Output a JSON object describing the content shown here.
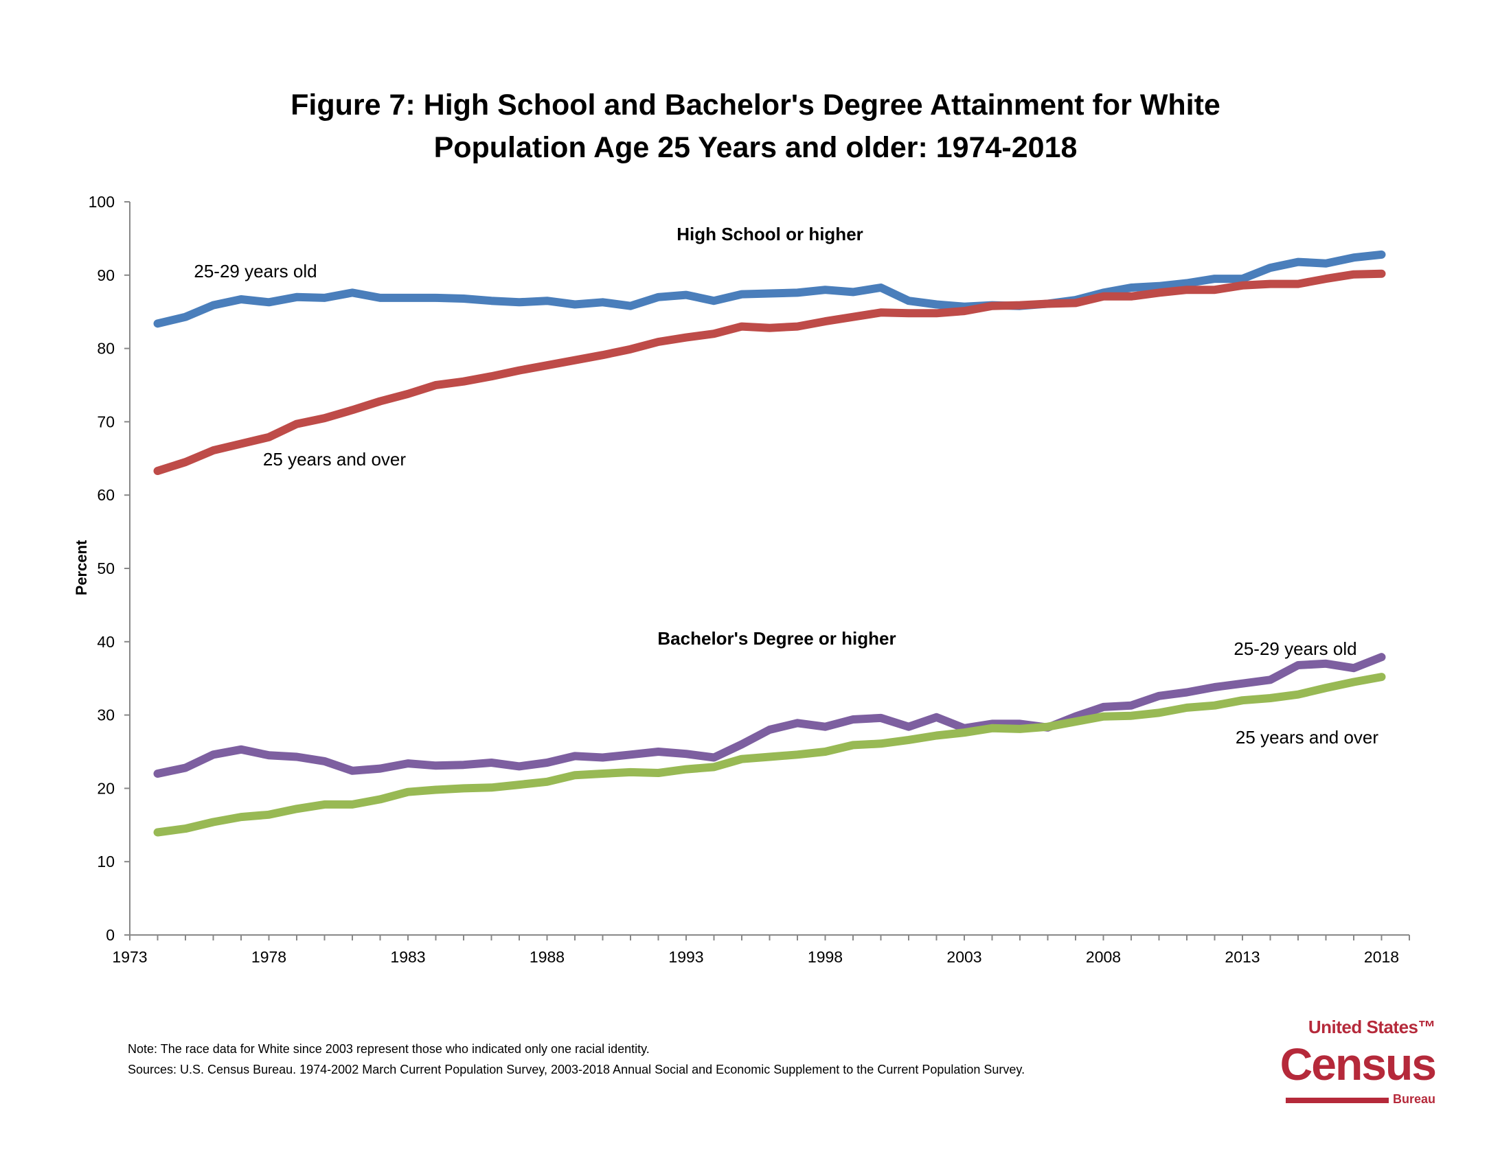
{
  "chart_data": {
    "type": "line",
    "title": "Figure 7: High School and Bachelor's Degree Attainment for White Population Age 25 Years and older: 1974-2018",
    "title_lines": [
      "Figure 7: High School and Bachelor's Degree Attainment for White",
      "Population Age 25 Years and older: 1974-2018"
    ],
    "xlabel": "",
    "ylabel": "Percent",
    "xlim": [
      1973,
      2018
    ],
    "ylim": [
      0,
      100
    ],
    "xticks": [
      1973,
      1978,
      1983,
      1988,
      1993,
      1998,
      2003,
      2008,
      2013,
      2018
    ],
    "yticks": [
      0,
      10,
      20,
      30,
      40,
      50,
      60,
      70,
      80,
      90,
      100
    ],
    "grid": false,
    "x": [
      1974,
      1975,
      1976,
      1977,
      1978,
      1979,
      1980,
      1981,
      1982,
      1983,
      1984,
      1985,
      1986,
      1987,
      1988,
      1989,
      1990,
      1991,
      1992,
      1993,
      1994,
      1995,
      1996,
      1997,
      1998,
      1999,
      2000,
      2001,
      2002,
      2003,
      2004,
      2005,
      2006,
      2007,
      2008,
      2009,
      2010,
      2011,
      2012,
      2013,
      2014,
      2015,
      2016,
      2017,
      2018
    ],
    "series": [
      {
        "name": "25-29 years old",
        "group": "High School or higher",
        "color": "#4a7ebb",
        "values": [
          83.4,
          84.3,
          85.9,
          86.7,
          86.3,
          87.0,
          86.9,
          87.6,
          86.9,
          86.9,
          86.9,
          86.8,
          86.5,
          86.3,
          86.5,
          86.0,
          86.3,
          85.8,
          87.0,
          87.3,
          86.5,
          87.4,
          87.5,
          87.6,
          88.0,
          87.7,
          88.3,
          86.5,
          86.0,
          85.7,
          85.9,
          85.8,
          86.1,
          86.6,
          87.6,
          88.3,
          88.5,
          88.9,
          89.5,
          89.5,
          91.0,
          91.8,
          91.6,
          92.4,
          92.8
        ]
      },
      {
        "name": "25 years and over",
        "group": "High School or higher",
        "color": "#be4b48",
        "values": [
          63.3,
          64.5,
          66.1,
          67.0,
          67.9,
          69.7,
          70.5,
          71.6,
          72.8,
          73.8,
          75.0,
          75.5,
          76.2,
          77.0,
          77.7,
          78.4,
          79.1,
          79.9,
          80.9,
          81.5,
          82.0,
          83.0,
          82.8,
          83.0,
          83.7,
          84.3,
          84.9,
          84.8,
          84.8,
          85.1,
          85.8,
          85.9,
          86.1,
          86.2,
          87.1,
          87.1,
          87.6,
          88.0,
          88.0,
          88.6,
          88.8,
          88.8,
          89.5,
          90.1,
          90.2
        ]
      },
      {
        "name": "25-29 years old",
        "group": "Bachelor's Degree or higher",
        "color": "#7d5fa0",
        "values": [
          22.0,
          22.8,
          24.6,
          25.3,
          24.5,
          24.3,
          23.7,
          22.4,
          22.7,
          23.4,
          23.1,
          23.2,
          23.5,
          23.0,
          23.5,
          24.4,
          24.2,
          24.6,
          25.0,
          24.7,
          24.2,
          26.0,
          28.0,
          28.9,
          28.4,
          29.4,
          29.6,
          28.4,
          29.7,
          28.2,
          28.8,
          28.8,
          28.3,
          29.8,
          31.1,
          31.3,
          32.6,
          33.1,
          33.8,
          34.3,
          34.8,
          36.8,
          37.0,
          36.4,
          37.9
        ]
      },
      {
        "name": "25 years and over",
        "group": "Bachelor's Degree or higher",
        "color": "#98b954",
        "values": [
          14.0,
          14.5,
          15.4,
          16.1,
          16.4,
          17.2,
          17.8,
          17.8,
          18.5,
          19.5,
          19.8,
          20.0,
          20.1,
          20.5,
          20.9,
          21.8,
          22.0,
          22.2,
          22.1,
          22.6,
          22.9,
          24.0,
          24.3,
          24.6,
          25.0,
          25.9,
          26.1,
          26.6,
          27.2,
          27.6,
          28.2,
          28.1,
          28.4,
          29.1,
          29.8,
          29.9,
          30.3,
          31.0,
          31.3,
          32.0,
          32.3,
          32.8,
          33.7,
          34.5,
          35.2
        ]
      }
    ],
    "annotations": {
      "hs_group": "High School or higher",
      "ba_group": "Bachelor's Degree or higher",
      "hs_young": "25-29 years old",
      "hs_all": "25 years and over",
      "ba_young": "25-29 years old",
      "ba_all": "25 years and over"
    }
  },
  "footer": {
    "note": "Note: The race data for White since 2003 represent those who indicated only one racial identity.",
    "sources": "Sources:  U.S. Census Bureau. 1974-2002 March Current Population Survey, 2003-2018 Annual Social and Economic Supplement to the Current Population Survey."
  },
  "logo": {
    "line1": "United States™",
    "line2": "Census",
    "line3": "Bureau"
  }
}
